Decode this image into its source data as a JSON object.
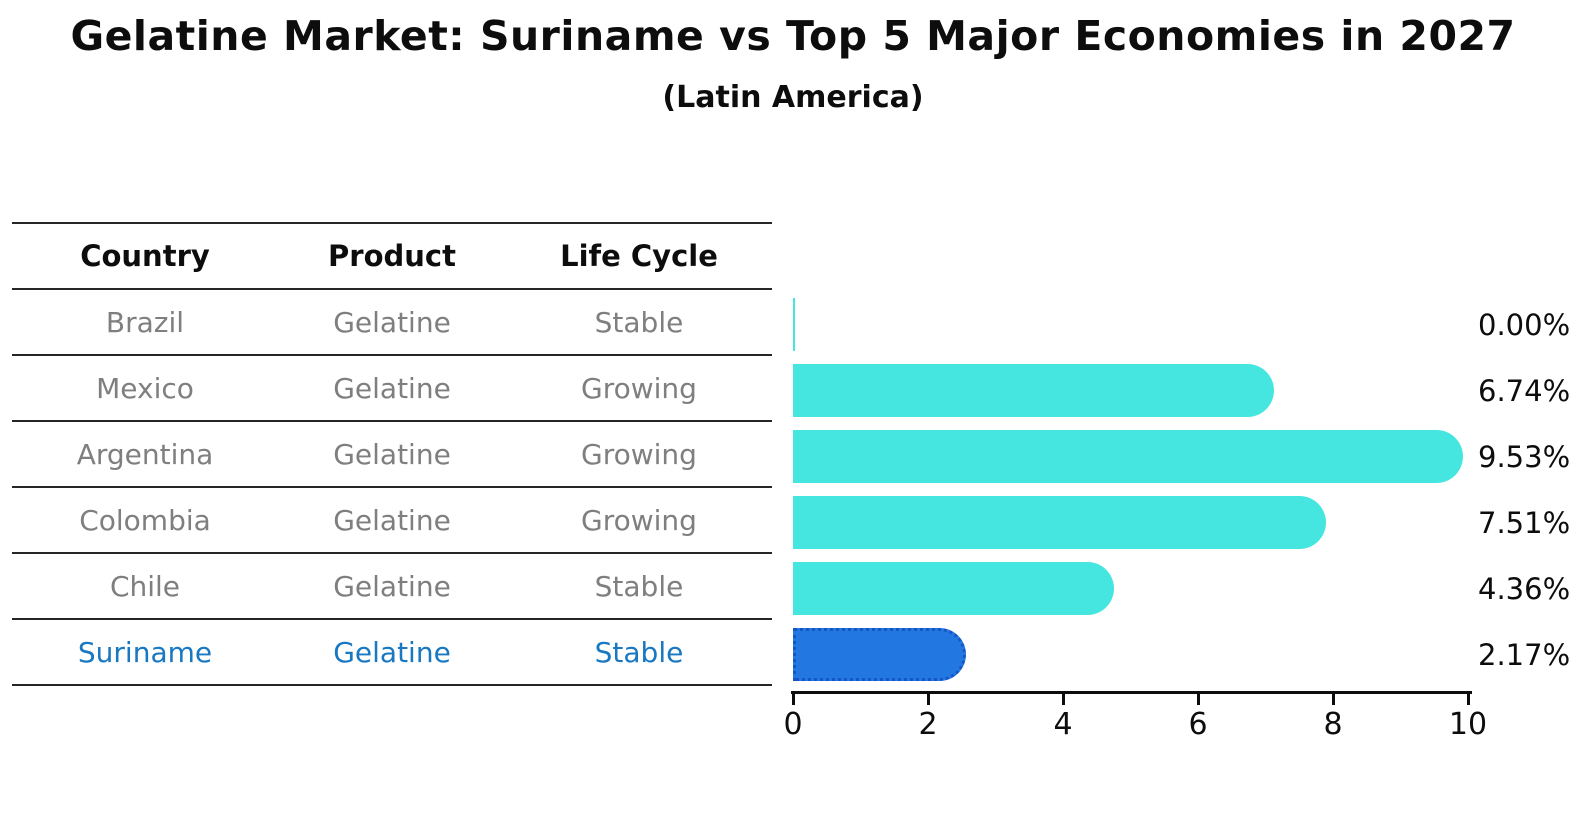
{
  "page": {
    "title": "Gelatine Market: Suriname vs Top 5 Major Economies in 2027",
    "subtitle": "(Latin America)"
  },
  "table": {
    "headers": [
      "Country",
      "Product",
      "Life Cycle"
    ],
    "rows": [
      {
        "country": "Brazil",
        "product": "Gelatine",
        "life_cycle": "Stable",
        "highlighted": false
      },
      {
        "country": "Mexico",
        "product": "Gelatine",
        "life_cycle": "Growing",
        "highlighted": false
      },
      {
        "country": "Argentina",
        "product": "Gelatine",
        "life_cycle": "Growing",
        "highlighted": false
      },
      {
        "country": "Colombia",
        "product": "Gelatine",
        "life_cycle": "Growing",
        "highlighted": false
      },
      {
        "country": "Chile",
        "product": "Gelatine",
        "life_cycle": "Stable",
        "highlighted": false
      },
      {
        "country": "Suriname",
        "product": "Gelatine",
        "life_cycle": "Stable",
        "highlighted": true
      }
    ]
  },
  "chart_data": {
    "type": "bar",
    "orientation": "horizontal",
    "title": "Gelatine Market: Suriname vs Top 5 Major Economies in 2027",
    "subtitle": "(Latin America)",
    "categories": [
      "Brazil",
      "Mexico",
      "Argentina",
      "Colombia",
      "Chile",
      "Suriname"
    ],
    "values": [
      0.0,
      6.74,
      9.53,
      7.51,
      4.36,
      2.17
    ],
    "value_labels": [
      "0.00%",
      "6.74%",
      "9.53%",
      "7.51%",
      "4.36%",
      "2.17%"
    ],
    "highlight_category": "Suriname",
    "xlim": [
      0,
      10
    ],
    "xticks": [
      0,
      2,
      4,
      6,
      8,
      10
    ],
    "xtick_labels": [
      "0",
      "2",
      "4",
      "6",
      "8",
      "10"
    ],
    "grid": false,
    "legend": false,
    "bar_color": "#45e6e0",
    "highlight_bar_color": "#2277e1",
    "highlight_border_color": "#1456c6"
  },
  "colors": {
    "text_primary": "#0d0d0d",
    "table_text": "#7f7f7f",
    "highlight_text": "#1878c2",
    "rule_line": "#262626"
  }
}
